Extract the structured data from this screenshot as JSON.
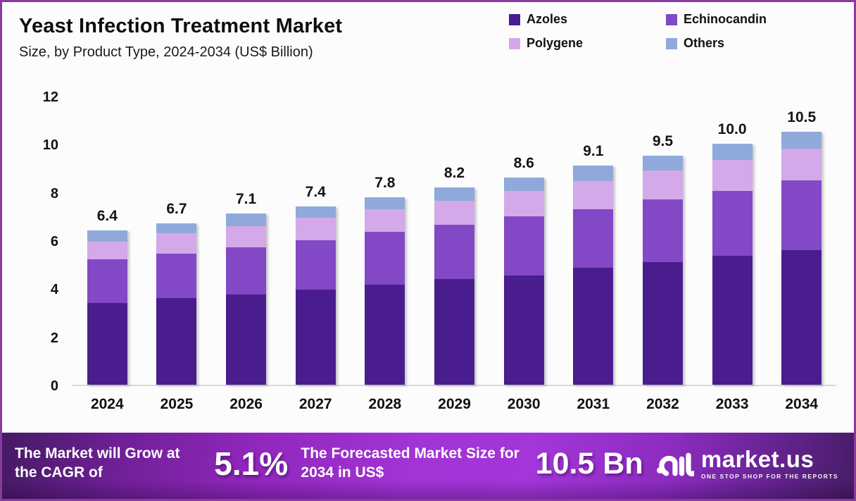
{
  "header": {
    "title": "Yeast Infection Treatment Market",
    "subtitle": "Size, by Product Type, 2024-2034 (US$ Billion)"
  },
  "colors": {
    "azoles": "#4a1d8e",
    "echinocandin": "#8348c5",
    "polygene": "#d4a9e9",
    "others": "#8fa9db",
    "border": "#8a3a9e",
    "baseline": "#d8d8d8"
  },
  "chart_data": {
    "type": "bar",
    "subtype": "stacked",
    "title": "Yeast Infection Treatment Market Size, by Product Type, 2024-2034 (US$ Billion)",
    "categories": [
      "2024",
      "2025",
      "2026",
      "2027",
      "2028",
      "2029",
      "2030",
      "2031",
      "2032",
      "2033",
      "2034"
    ],
    "series": [
      {
        "name": "Azoles",
        "color": "#4a1d8e",
        "values": [
          3.4,
          3.6,
          3.75,
          3.95,
          4.15,
          4.4,
          4.55,
          4.85,
          5.1,
          5.35,
          5.6
        ]
      },
      {
        "name": "Echinocandin",
        "color": "#8348c5",
        "values": [
          1.8,
          1.85,
          1.95,
          2.05,
          2.2,
          2.25,
          2.45,
          2.45,
          2.6,
          2.7,
          2.9
        ]
      },
      {
        "name": "Polygene",
        "color": "#d4a9e9",
        "values": [
          0.75,
          0.85,
          0.9,
          0.95,
          0.95,
          1.0,
          1.05,
          1.15,
          1.2,
          1.3,
          1.3
        ]
      },
      {
        "name": "Others",
        "color": "#8fa9db",
        "values": [
          0.45,
          0.4,
          0.5,
          0.45,
          0.5,
          0.55,
          0.55,
          0.65,
          0.6,
          0.65,
          0.7
        ]
      }
    ],
    "totals": [
      6.4,
      6.7,
      7.1,
      7.4,
      7.8,
      8.2,
      8.6,
      9.1,
      9.5,
      10.0,
      10.5
    ],
    "total_labels": [
      "6.4",
      "6.7",
      "7.1",
      "7.4",
      "7.8",
      "8.2",
      "8.6",
      "9.1",
      "9.5",
      "10.0",
      "10.5"
    ],
    "xlabel": "",
    "ylabel": "",
    "ylim": [
      0,
      12
    ],
    "y_ticks": [
      0,
      2,
      4,
      6,
      8,
      10,
      12
    ],
    "grid": false,
    "legend_position": "top-right",
    "legend_entries": [
      "Azoles",
      "Echinocandin",
      "Polygene",
      "Others"
    ]
  },
  "footer": {
    "cagr_label": "The Market will Grow at the CAGR of",
    "cagr_value": "5.1%",
    "forecast_label": "The Forecasted Market Size for 2034 in US$",
    "forecast_value": "10.5 Bn",
    "brand": {
      "name": "market.us",
      "tagline": "ONE STOP SHOP FOR THE REPORTS"
    }
  }
}
